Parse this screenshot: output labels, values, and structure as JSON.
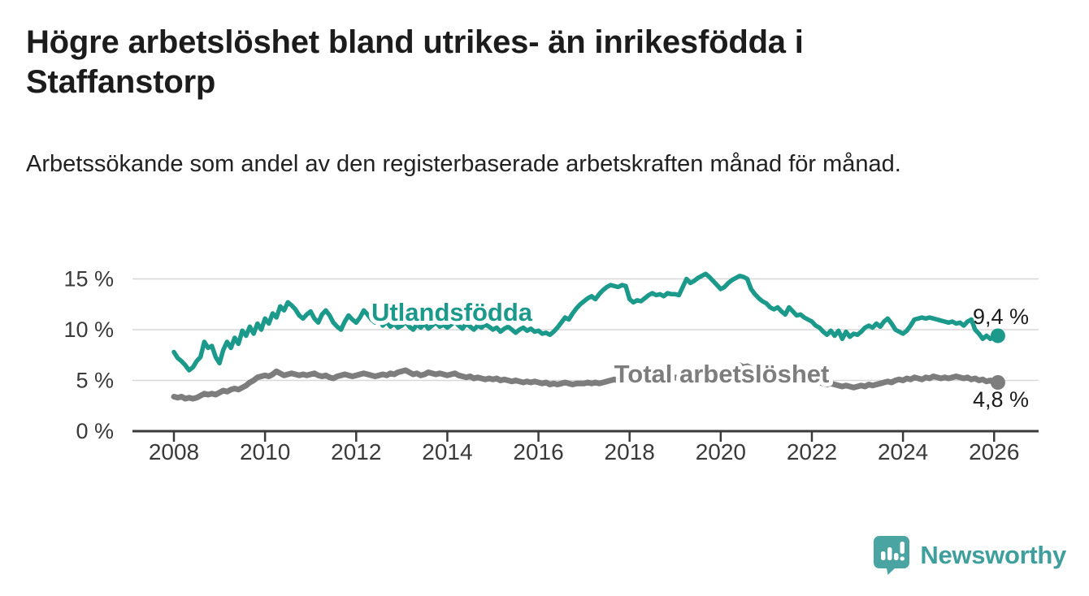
{
  "title": "Högre arbetslöshet bland utrikes- än inrikesfödda i Staffanstorp",
  "subtitle": "Arbetssökande som andel av den registerbaserade arbetskraften månad för månad.",
  "brand": {
    "name": "Newsworthy",
    "logo_icon": "speech-bubble-bar-chart-icon"
  },
  "colors": {
    "series_foreign": "#1b9a8c",
    "series_total": "#7d7d7d",
    "grid": "#d8d8d8",
    "axis": "#3a3a3a",
    "text": "#1c1c1c",
    "halo": "#ffffff",
    "brand_teal": "#4aa5a2"
  },
  "chart_data": {
    "type": "line",
    "frequency": "monthly",
    "x_start": "2008-01",
    "x_end": "2026-02",
    "xticks": [
      2008,
      2010,
      2012,
      2014,
      2016,
      2018,
      2020,
      2022,
      2024,
      2026
    ],
    "yticks": [
      {
        "value": 0,
        "label": "0 %"
      },
      {
        "value": 5,
        "label": "5 %"
      },
      {
        "value": 10,
        "label": "10 %"
      },
      {
        "value": 15,
        "label": "15 %"
      }
    ],
    "ylim": [
      0,
      16.5
    ],
    "grid": true,
    "legend_position": "inline-labels",
    "unit": "%",
    "series": [
      {
        "name": "Utlandsfödda",
        "end_label": "9,4 %",
        "end_value": 9.4,
        "values": [
          7.8,
          7.2,
          6.9,
          6.5,
          6.0,
          6.3,
          6.9,
          7.3,
          8.8,
          8.2,
          8.4,
          7.3,
          6.7,
          8.0,
          8.8,
          8.2,
          9.2,
          8.6,
          9.9,
          9.4,
          10.3,
          9.6,
          10.6,
          10.0,
          11.1,
          10.6,
          11.6,
          11.2,
          12.3,
          11.9,
          12.7,
          12.4,
          12.0,
          11.4,
          11.1,
          11.5,
          11.8,
          11.1,
          10.7,
          11.5,
          11.9,
          11.4,
          10.7,
          10.3,
          10.0,
          10.8,
          11.4,
          11.0,
          10.7,
          11.2,
          11.9,
          11.5,
          11.0,
          10.7,
          11.1,
          10.4,
          10.8,
          10.3,
          10.6,
          10.2,
          10.4,
          10.8,
          10.3,
          10.0,
          10.5,
          10.2,
          10.6,
          10.1,
          10.4,
          10.7,
          10.3,
          10.5,
          10.2,
          10.5,
          10.8,
          10.4,
          10.1,
          10.6,
          10.3,
          10.0,
          10.4,
          10.2,
          10.5,
          10.3,
          10.0,
          10.2,
          9.8,
          10.1,
          10.3,
          10.0,
          9.7,
          10.0,
          10.2,
          9.9,
          10.1,
          9.8,
          9.9,
          9.6,
          9.7,
          9.5,
          9.8,
          10.2,
          10.7,
          11.2,
          11.0,
          11.6,
          12.1,
          12.5,
          12.8,
          13.1,
          13.3,
          13.0,
          13.5,
          13.9,
          14.2,
          14.4,
          14.3,
          14.2,
          14.4,
          14.3,
          13.0,
          12.7,
          12.9,
          12.8,
          13.1,
          13.4,
          13.6,
          13.4,
          13.5,
          13.3,
          13.6,
          13.5,
          13.5,
          13.4,
          14.2,
          15.0,
          14.6,
          14.8,
          15.1,
          15.3,
          15.5,
          15.2,
          14.8,
          14.4,
          14.0,
          14.2,
          14.6,
          14.9,
          15.1,
          15.3,
          15.2,
          15.0,
          14.0,
          13.5,
          13.1,
          12.8,
          12.6,
          12.2,
          12.0,
          12.2,
          11.8,
          11.5,
          12.2,
          11.8,
          11.4,
          11.5,
          11.2,
          11.0,
          10.8,
          10.4,
          10.2,
          9.8,
          9.5,
          9.9,
          9.4,
          9.9,
          9.1,
          9.8,
          9.3,
          9.6,
          9.5,
          9.8,
          10.2,
          10.4,
          10.2,
          10.6,
          10.3,
          10.8,
          11.1,
          10.6,
          10.0,
          9.8,
          9.6,
          9.9,
          10.4,
          11.0,
          11.1,
          11.2,
          11.1,
          11.2,
          11.1,
          11.0,
          10.9,
          10.8,
          10.7,
          10.8,
          10.6,
          10.7,
          10.4,
          10.8,
          11.0,
          10.0,
          9.6,
          9.1,
          9.4,
          9.1,
          9.3,
          9.4
        ]
      },
      {
        "name": "Total arbetslöshet",
        "end_label": "4,8 %",
        "end_value": 4.8,
        "values": [
          3.4,
          3.3,
          3.4,
          3.2,
          3.3,
          3.2,
          3.3,
          3.5,
          3.7,
          3.6,
          3.7,
          3.6,
          3.8,
          4.0,
          3.9,
          4.1,
          4.2,
          4.1,
          4.3,
          4.5,
          4.8,
          5.0,
          5.3,
          5.4,
          5.5,
          5.4,
          5.6,
          5.9,
          5.7,
          5.5,
          5.6,
          5.7,
          5.6,
          5.5,
          5.6,
          5.5,
          5.6,
          5.7,
          5.5,
          5.4,
          5.5,
          5.3,
          5.2,
          5.4,
          5.5,
          5.6,
          5.5,
          5.4,
          5.5,
          5.6,
          5.7,
          5.6,
          5.5,
          5.4,
          5.5,
          5.6,
          5.5,
          5.7,
          5.6,
          5.8,
          5.9,
          6.0,
          5.8,
          5.6,
          5.7,
          5.5,
          5.6,
          5.8,
          5.7,
          5.6,
          5.7,
          5.6,
          5.5,
          5.6,
          5.7,
          5.5,
          5.4,
          5.3,
          5.4,
          5.2,
          5.3,
          5.2,
          5.1,
          5.2,
          5.1,
          5.2,
          5.0,
          5.1,
          5.0,
          4.9,
          5.0,
          4.9,
          4.8,
          4.9,
          4.8,
          4.9,
          4.8,
          4.7,
          4.8,
          4.6,
          4.7,
          4.6,
          4.7,
          4.8,
          4.7,
          4.6,
          4.7,
          4.7,
          4.7,
          4.8,
          4.7,
          4.8,
          4.7,
          4.8,
          4.9,
          5.0,
          5.1,
          5.0,
          5.1,
          5.2,
          5.1,
          5.2,
          5.1,
          5.2,
          5.3,
          5.2,
          5.1,
          5.2,
          5.1,
          5.2,
          5.3,
          5.2,
          5.3,
          5.2,
          5.3,
          5.4,
          5.3,
          5.4,
          5.5,
          5.4,
          5.3,
          5.4,
          5.3,
          5.4,
          5.5,
          5.6,
          5.8,
          6.1,
          6.4,
          6.5,
          6.3,
          6.4,
          6.2,
          6.0,
          5.9,
          5.8,
          5.7,
          5.8,
          5.6,
          5.5,
          5.4,
          5.3,
          5.2,
          5.1,
          5.0,
          5.0,
          4.9,
          4.8,
          4.8,
          4.9,
          4.8,
          4.7,
          4.6,
          4.7,
          4.6,
          4.5,
          4.4,
          4.5,
          4.4,
          4.3,
          4.4,
          4.5,
          4.4,
          4.6,
          4.5,
          4.6,
          4.7,
          4.8,
          4.9,
          4.8,
          5.0,
          5.1,
          5.0,
          5.2,
          5.1,
          5.3,
          5.2,
          5.1,
          5.3,
          5.2,
          5.4,
          5.3,
          5.2,
          5.3,
          5.2,
          5.3,
          5.4,
          5.3,
          5.2,
          5.3,
          5.1,
          5.2,
          5.0,
          5.1,
          4.9,
          5.0,
          4.9,
          4.8
        ]
      }
    ]
  }
}
